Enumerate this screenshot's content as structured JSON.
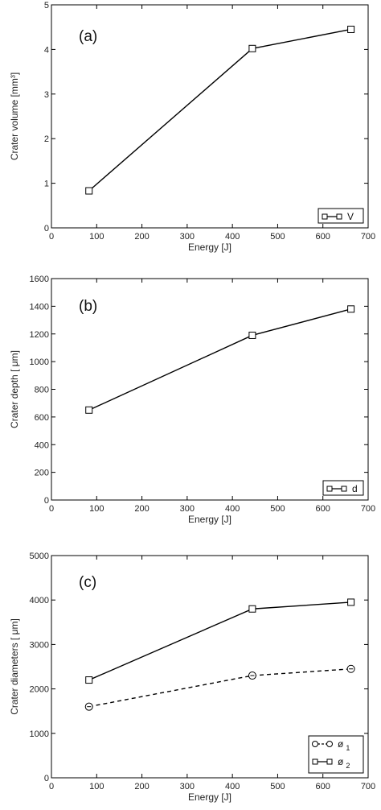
{
  "chart_data": [
    {
      "type": "line",
      "panel_label": "(a)",
      "xlabel": "Energy [J]",
      "ylabel": "Crater volume [mm³]",
      "xlim": [
        0,
        700
      ],
      "ylim": [
        0,
        5
      ],
      "xticks": [
        0,
        100,
        200,
        300,
        400,
        500,
        600,
        700
      ],
      "yticks": [
        0,
        1,
        2,
        3,
        4,
        5
      ],
      "grid": false,
      "legend_position": "bottom-right",
      "series": [
        {
          "name": "V",
          "marker": "square",
          "dash": "solid",
          "x": [
            83,
            444,
            662
          ],
          "y": [
            0.83,
            4.02,
            4.45
          ]
        }
      ]
    },
    {
      "type": "line",
      "panel_label": "(b)",
      "xlabel": "Energy [J]",
      "ylabel": "Crater depth [ μm]",
      "xlim": [
        0,
        700
      ],
      "ylim": [
        0,
        1600
      ],
      "xticks": [
        0,
        100,
        200,
        300,
        400,
        500,
        600,
        700
      ],
      "yticks": [
        0,
        200,
        400,
        600,
        800,
        1000,
        1200,
        1400,
        1600
      ],
      "grid": false,
      "legend_position": "bottom-right",
      "series": [
        {
          "name": "d",
          "marker": "square",
          "dash": "solid",
          "x": [
            83,
            444,
            662
          ],
          "y": [
            650,
            1190,
            1380
          ]
        }
      ]
    },
    {
      "type": "line",
      "panel_label": "(c)",
      "xlabel": "Energy [J]",
      "ylabel": "Crater diameters [ μm]",
      "xlim": [
        0,
        700
      ],
      "ylim": [
        0,
        5000
      ],
      "xticks": [
        0,
        100,
        200,
        300,
        400,
        500,
        600,
        700
      ],
      "yticks": [
        0,
        1000,
        2000,
        3000,
        4000,
        5000
      ],
      "grid": false,
      "legend_position": "bottom-right",
      "series": [
        {
          "name": "ø",
          "subscript": "1",
          "marker": "circle",
          "dash": "dashed",
          "x": [
            83,
            444,
            662
          ],
          "y": [
            1600,
            2300,
            2450
          ]
        },
        {
          "name": "ø",
          "subscript": "2",
          "marker": "square",
          "dash": "solid",
          "x": [
            83,
            444,
            662
          ],
          "y": [
            2200,
            3800,
            3950
          ]
        }
      ]
    }
  ]
}
